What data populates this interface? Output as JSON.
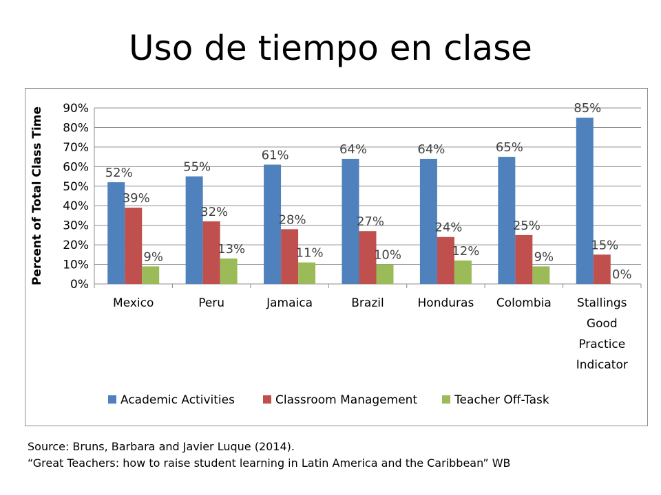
{
  "title": "Uso de tiempo en clase",
  "source": {
    "line1": "Source: Bruns, Barbara and Javier Luque (2014).",
    "line2": "“Great Teachers: how to raise student learning in Latin America and the Caribbean” WB"
  },
  "chart_data": {
    "type": "bar",
    "title": "",
    "xlabel": "",
    "ylabel": "Percent of Total Class Time",
    "ylim": [
      0,
      90
    ],
    "yticks": [
      "0%",
      "10%",
      "20%",
      "30%",
      "40%",
      "50%",
      "60%",
      "70%",
      "80%",
      "90%"
    ],
    "grid": true,
    "legend_position": "bottom",
    "categories": [
      [
        "Mexico"
      ],
      [
        "Peru"
      ],
      [
        "Jamaica"
      ],
      [
        "Brazil"
      ],
      [
        "Honduras"
      ],
      [
        "Colombia"
      ],
      [
        "Stallings",
        "Good",
        "Practice",
        "Indicator"
      ]
    ],
    "series": [
      {
        "name": "Academic Activities",
        "color": "#4f81bd",
        "values": [
          52,
          55,
          61,
          64,
          64,
          65,
          85
        ],
        "labels": [
          "52%",
          "55%",
          "61%",
          "64%",
          "64%",
          "65%",
          "85%"
        ]
      },
      {
        "name": "Classroom Management",
        "color": "#c0504d",
        "values": [
          39,
          32,
          28,
          27,
          24,
          25,
          15
        ],
        "labels": [
          "39%",
          "32%",
          "28%",
          "27%",
          "24%",
          "25%",
          "15%"
        ]
      },
      {
        "name": "Teacher Off-Task",
        "color": "#9bbb59",
        "values": [
          9,
          13,
          11,
          10,
          12,
          9,
          0
        ],
        "labels": [
          "9%",
          "13%",
          "11%",
          "10%",
          "12%",
          "9%",
          "0%"
        ]
      }
    ]
  }
}
